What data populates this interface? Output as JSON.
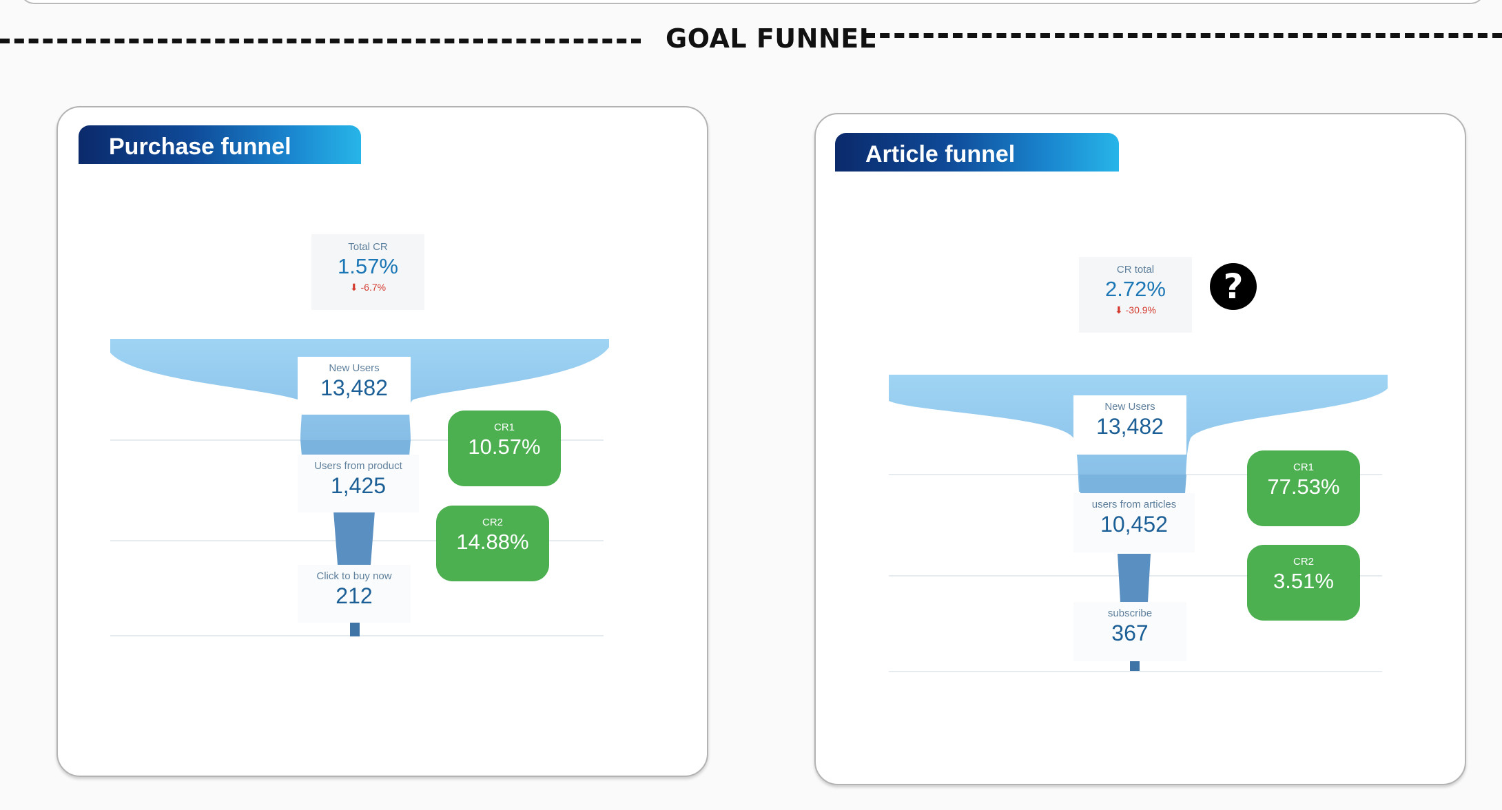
{
  "section": {
    "title": "GOAL FUNNEL"
  },
  "purchase_funnel": {
    "title": "Purchase funnel",
    "total": {
      "label": "Total CR",
      "value": "1.57%",
      "delta": "-6.7%",
      "delta_direction": "down"
    },
    "stages": [
      {
        "name": "New Users",
        "value": "13,482"
      },
      {
        "name": "Users from product",
        "value": "1,425"
      },
      {
        "name": "Click to buy now",
        "value": "212"
      }
    ],
    "conversions": [
      {
        "name": "CR1",
        "value": "10.57%"
      },
      {
        "name": "CR2",
        "value": "14.88%"
      }
    ]
  },
  "article_funnel": {
    "title": "Article funnel",
    "total": {
      "label": "CR total",
      "value": "2.72%",
      "delta": "-30.9%",
      "delta_direction": "down"
    },
    "help_icon": "?",
    "stages": [
      {
        "name": "New Users",
        "value": "13,482"
      },
      {
        "name": "users from articles",
        "value": "10,452"
      },
      {
        "name": "subscribe",
        "value": "367"
      }
    ],
    "conversions": [
      {
        "name": "CR1",
        "value": "77.53%"
      },
      {
        "name": "CR2",
        "value": "3.51%"
      }
    ]
  },
  "colors": {
    "funnel_light": "#9fd2f2",
    "funnel_mid": "#6fa6d3",
    "funnel_dark": "#3f74a6",
    "badge_green": "#4caf50",
    "value_blue": "#1b76b5",
    "delta_red": "#d43a2f"
  },
  "icons": {
    "delta": "arrow-down-icon",
    "help": "question-mark-icon"
  }
}
